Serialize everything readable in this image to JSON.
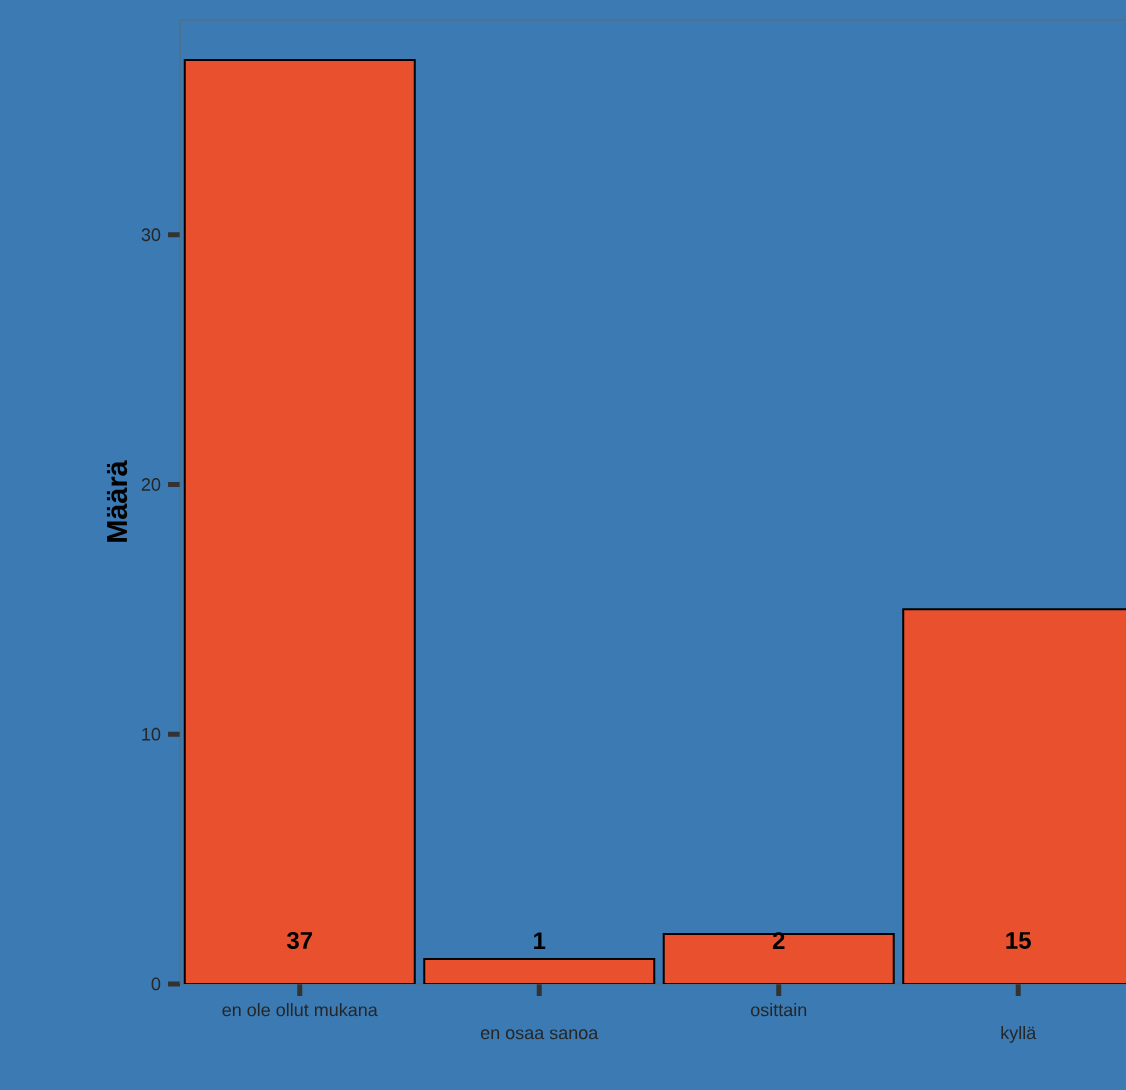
{
  "chart_data": {
    "type": "bar",
    "ylabel": "Määrä",
    "categories": [
      "en ole ollut mukana",
      "en osaa sanoa",
      "osittain",
      "kyllä"
    ],
    "values": [
      37,
      1,
      2,
      15
    ],
    "color": "#e8502e",
    "ylim": [
      0,
      38.6
    ],
    "yticks": [
      0,
      10,
      20,
      30
    ],
    "data_labels": true,
    "grid": false
  }
}
